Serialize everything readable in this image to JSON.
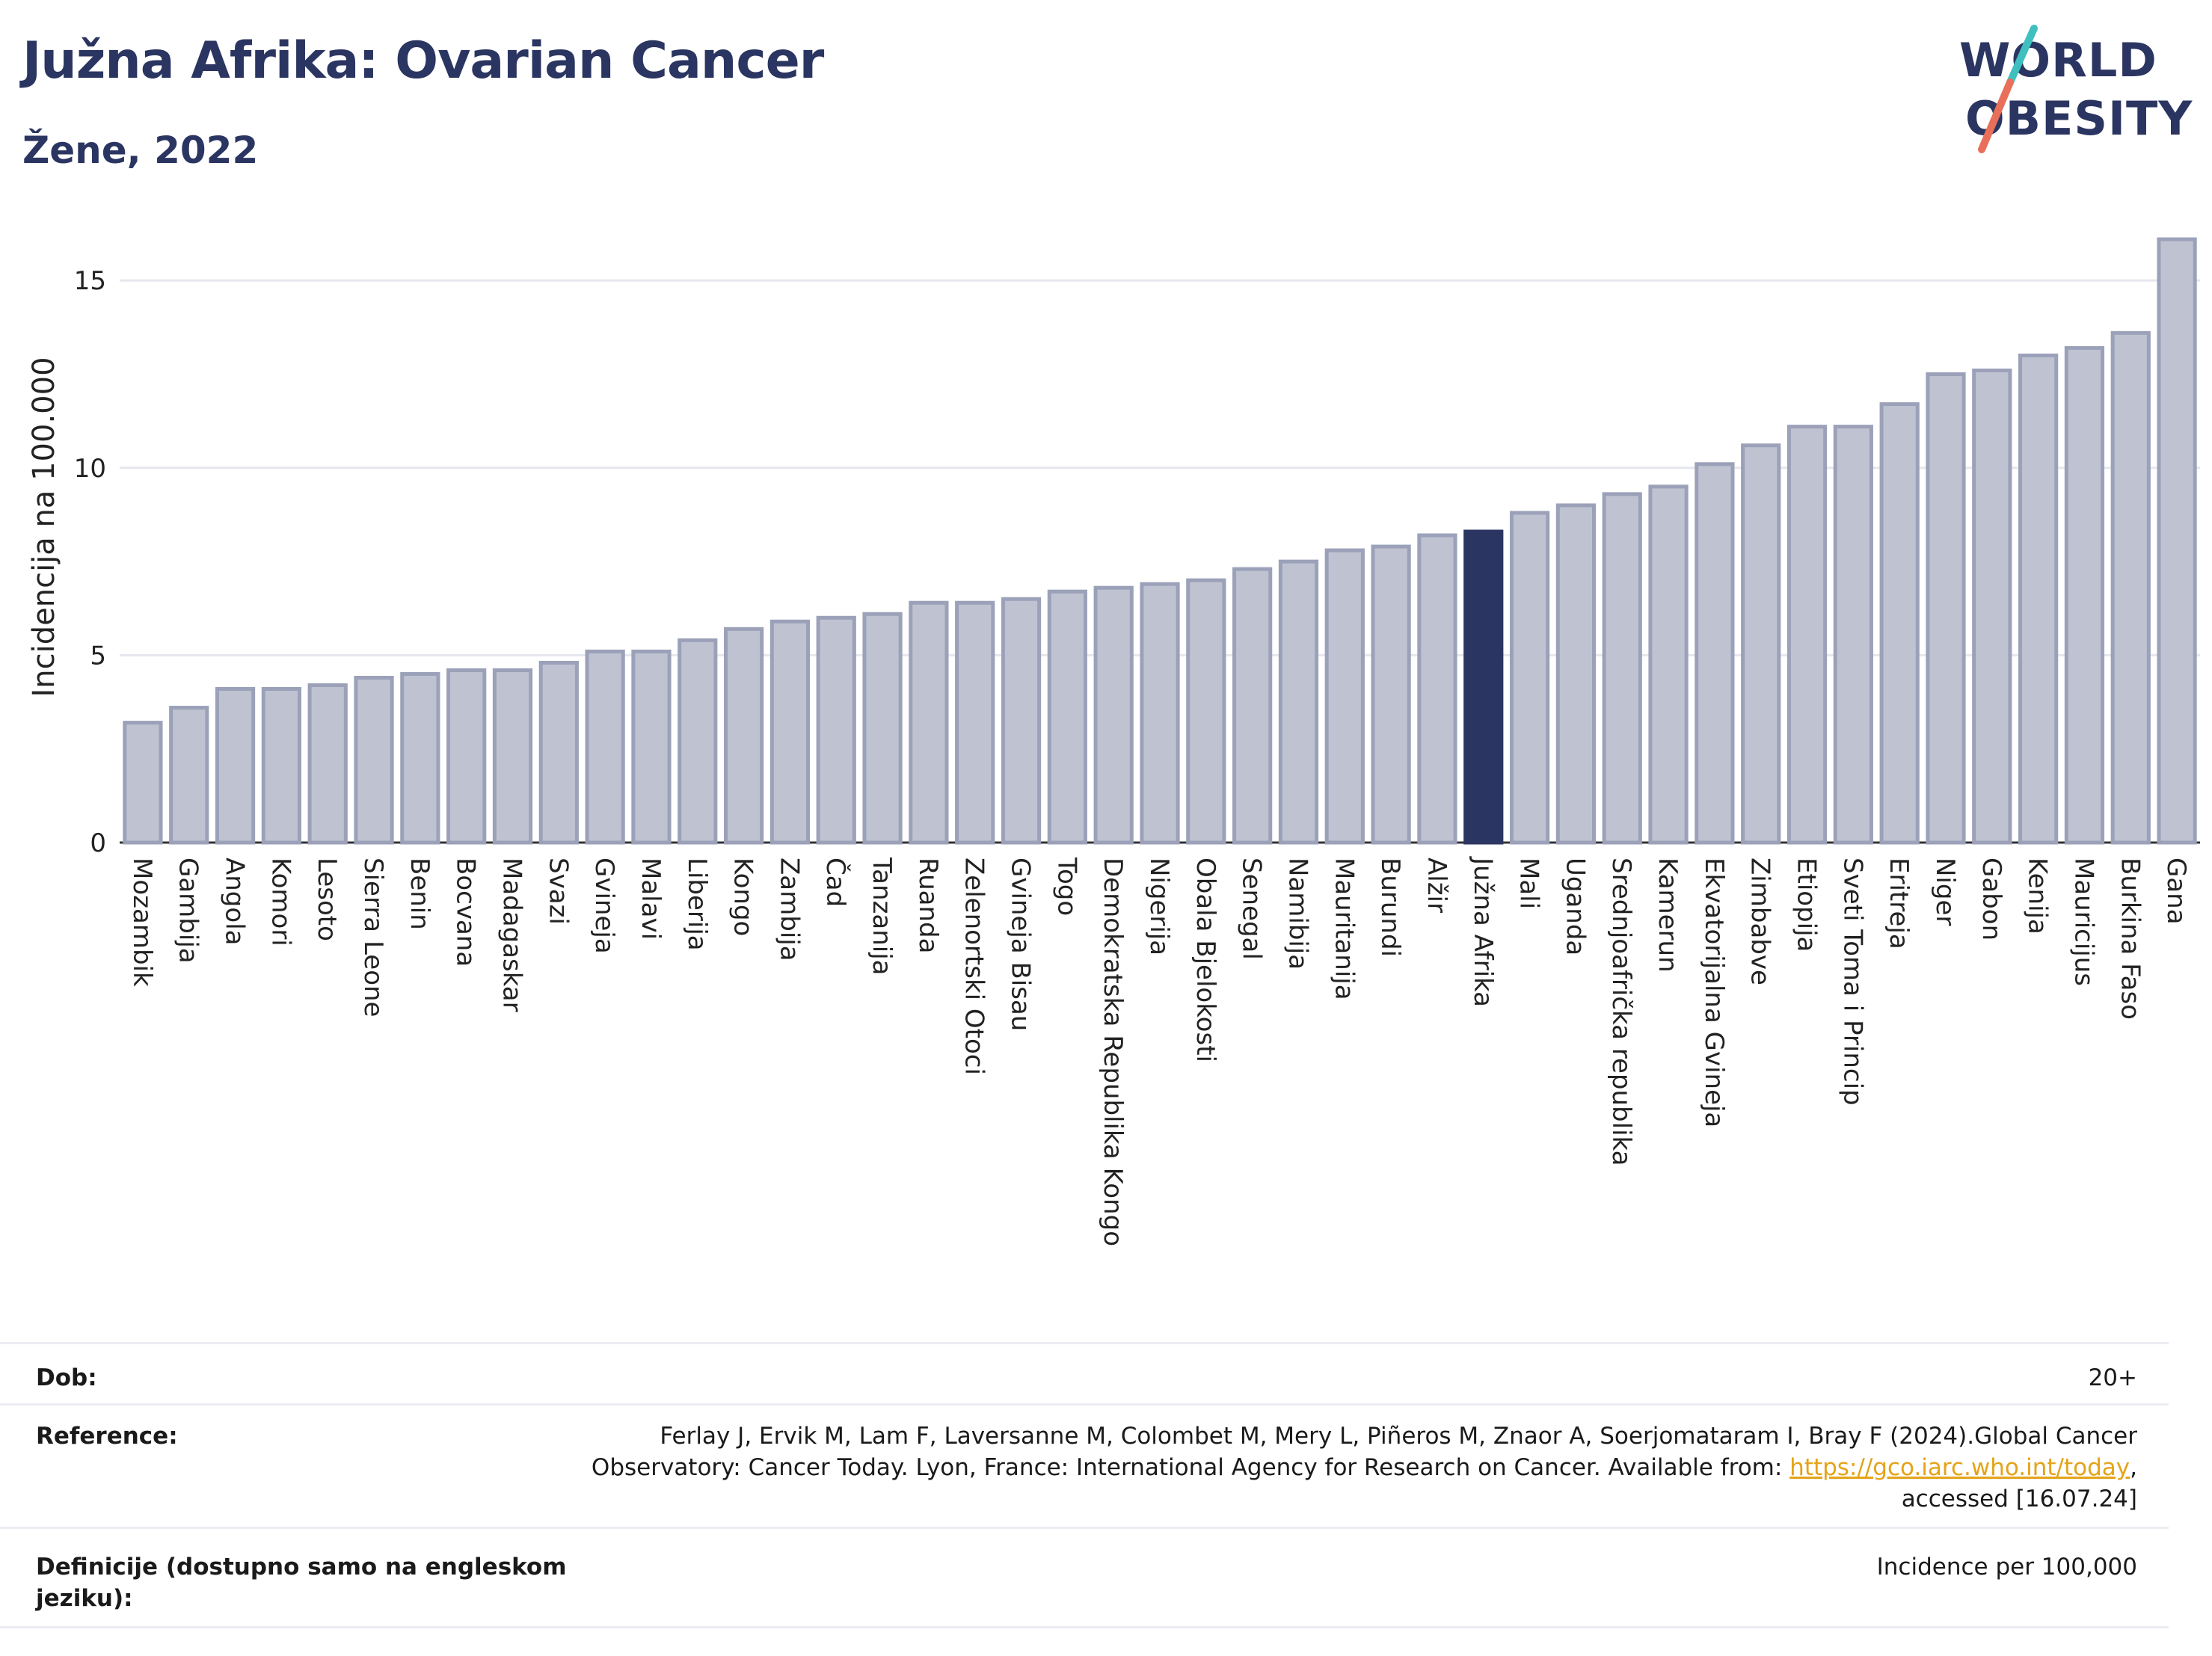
{
  "header": {
    "title": "Južna Afrika: Ovarian Cancer",
    "subtitle": "Žene, 2022"
  },
  "logo": {
    "line1": "WORLD",
    "line2": "OBESITY"
  },
  "chart_data": {
    "type": "bar",
    "title": "Južna Afrika: Ovarian Cancer",
    "subtitle": "Žene, 2022",
    "ylabel": "Incidencija na 100.000",
    "xlabel": "",
    "ylim": [
      0,
      16.5
    ],
    "yticks": [
      0,
      5,
      10,
      15
    ],
    "highlight": "Južna Afrika",
    "colors": {
      "bar": "#bfc3d1",
      "bar_edge": "#9ba1b8",
      "highlight": "#2b3561",
      "grid": "#e6e6ee"
    },
    "categories": [
      "Mozambik",
      "Gambija",
      "Angola",
      "Komori",
      "Lesoto",
      "Sierra Leone",
      "Benin",
      "Bocvana",
      "Madagaskar",
      "Svazi",
      "Gvineja",
      "Malavi",
      "Liberija",
      "Kongo",
      "Zambija",
      "Čad",
      "Tanzanija",
      "Ruanda",
      "Zelenortski Otoci",
      "Gvineja Bisau",
      "Togo",
      "Demokratska Republika Kongo",
      "Nigerija",
      "Obala Bjelokosti",
      "Senegal",
      "Namibija",
      "Mauritanija",
      "Burundi",
      "Alžir",
      "Južna Afrika",
      "Mali",
      "Uganda",
      "Srednjoafrička republika",
      "Kamerun",
      "Ekvatorijalna Gvineja",
      "Zimbabve",
      "Etiopija",
      "Sveti Toma i Princip",
      "Eritreja",
      "Niger",
      "Gabon",
      "Kenija",
      "Mauricijus",
      "Burkina Faso",
      "Gana"
    ],
    "values": [
      3.2,
      3.6,
      4.1,
      4.1,
      4.2,
      4.4,
      4.5,
      4.6,
      4.6,
      4.8,
      5.1,
      5.1,
      5.4,
      5.7,
      5.9,
      6.0,
      6.1,
      6.4,
      6.4,
      6.5,
      6.7,
      6.8,
      6.9,
      7.0,
      7.3,
      7.5,
      7.8,
      7.9,
      8.2,
      8.3,
      8.8,
      9.0,
      9.3,
      9.5,
      10.1,
      10.6,
      11.1,
      11.1,
      11.7,
      12.5,
      12.6,
      13.0,
      13.2,
      13.6,
      16.1
    ]
  },
  "info": {
    "age_label": "Dob:",
    "age_value": "20+",
    "ref_label": "Reference:",
    "ref_text_1": "Ferlay J, Ervik M, Lam F, Laversanne M, Colombet M, Mery L, Piñeros M, Znaor A, Soerjomataram I, Bray F (2024).Global Cancer Observatory: Cancer Today. Lyon, France: International Agency for Research on Cancer. Available from: ",
    "ref_link": "https://gco.iarc.who.int/today",
    "ref_text_2": ", accessed [16.07.24]",
    "def_label": "Definicije (dostupno samo na engleskom jeziku):",
    "def_value": "Incidence per 100,000"
  }
}
